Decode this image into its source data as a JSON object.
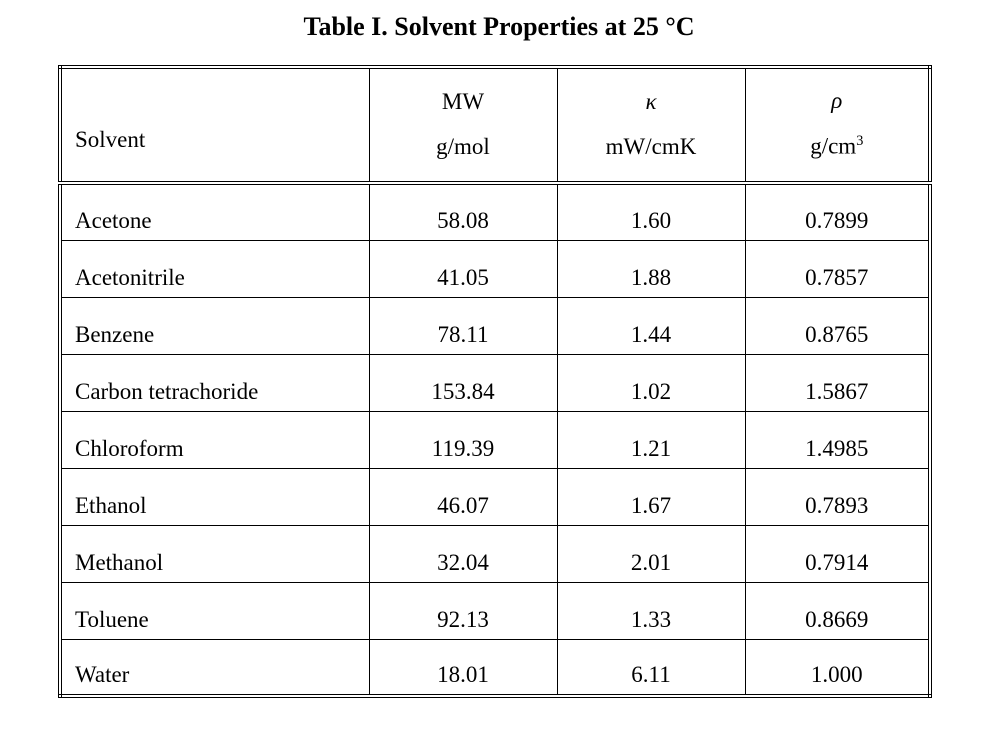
{
  "page": {
    "background": "#ffffff",
    "text_color": "#000000"
  },
  "title": "Table I. Solvent Properties at 25 °C",
  "table": {
    "header": {
      "solvent_label": "Solvent",
      "mw_symbol": "MW",
      "mw_unit": "g/mol",
      "kappa_symbol": "κ",
      "kappa_unit": "mW/cmK",
      "rho_symbol": "ρ",
      "rho_unit_base": "g/cm",
      "rho_unit_sup": "3"
    },
    "rows": [
      {
        "solvent": "Acetone",
        "mw": "58.08",
        "kappa": "1.60",
        "rho": "0.7899"
      },
      {
        "solvent": "Acetonitrile",
        "mw": "41.05",
        "kappa": "1.88",
        "rho": "0.7857"
      },
      {
        "solvent": "Benzene",
        "mw": "78.11",
        "kappa": "1.44",
        "rho": "0.8765"
      },
      {
        "solvent": "Carbon tetrachoride",
        "mw": "153.84",
        "kappa": "1.02",
        "rho": "1.5867"
      },
      {
        "solvent": "Chloroform",
        "mw": "119.39",
        "kappa": "1.21",
        "rho": "1.4985"
      },
      {
        "solvent": "Ethanol",
        "mw": "46.07",
        "kappa": "1.67",
        "rho": "0.7893"
      },
      {
        "solvent": "Methanol",
        "mw": "32.04",
        "kappa": "2.01",
        "rho": "0.7914"
      },
      {
        "solvent": "Toluene",
        "mw": "92.13",
        "kappa": "1.33",
        "rho": "0.8669"
      },
      {
        "solvent": "Water",
        "mw": "18.01",
        "kappa": "6.11",
        "rho": "1.000"
      }
    ]
  }
}
